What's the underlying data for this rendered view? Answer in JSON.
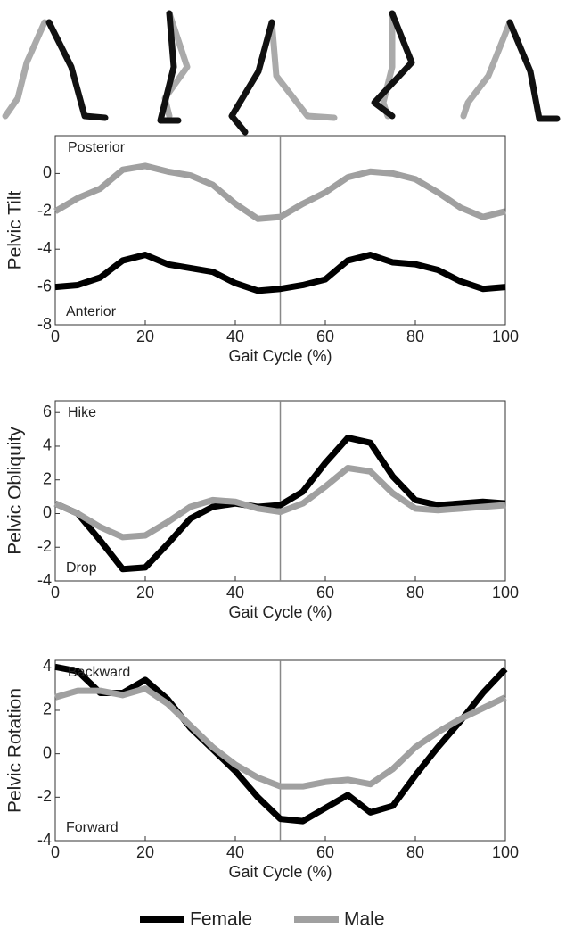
{
  "chart_data": [
    {
      "type": "line",
      "ylabel": "Pelvic Tilt",
      "xlabel": "Gait Cycle (%)",
      "annotations": [
        "Posterior",
        "Anterior"
      ],
      "x": [
        0,
        5,
        10,
        15,
        20,
        25,
        30,
        35,
        40,
        45,
        50,
        55,
        60,
        65,
        70,
        75,
        80,
        85,
        90,
        95,
        100
      ],
      "series": [
        {
          "name": "Female",
          "color": "#000000",
          "values": [
            -6,
            -5.9,
            -5.5,
            -4.6,
            -4.3,
            -4.8,
            -5,
            -5.2,
            -5.8,
            -6.2,
            -6.1,
            -5.9,
            -5.6,
            -4.6,
            -4.3,
            -4.7,
            -4.8,
            -5.1,
            -5.7,
            -6.1,
            -6
          ]
        },
        {
          "name": "Male",
          "color": "#a0a0a0",
          "values": [
            -2,
            -1.3,
            -0.8,
            0.2,
            0.4,
            0.1,
            -0.1,
            -0.6,
            -1.6,
            -2.4,
            -2.3,
            -1.6,
            -1,
            -0.2,
            0.1,
            0,
            -0.3,
            -1,
            -1.8,
            -2.3,
            -2
          ]
        }
      ],
      "xlim": [
        0,
        100
      ],
      "xticks": [
        0,
        20,
        40,
        60,
        80,
        100
      ],
      "ylim": [
        -8,
        2
      ],
      "yticks": [
        -8,
        -6,
        -4,
        -2,
        0
      ],
      "vline": 50
    },
    {
      "type": "line",
      "ylabel": "Pelvic Obliquity",
      "xlabel": "Gait Cycle (%)",
      "annotations": [
        "Hike",
        "Drop"
      ],
      "x": [
        0,
        5,
        10,
        15,
        20,
        25,
        30,
        35,
        40,
        45,
        50,
        55,
        60,
        65,
        70,
        75,
        80,
        85,
        90,
        95,
        100
      ],
      "series": [
        {
          "name": "Female",
          "color": "#000000",
          "values": [
            0.6,
            0,
            -1.6,
            -3.3,
            -3.2,
            -1.8,
            -0.3,
            0.4,
            0.6,
            0.4,
            0.5,
            1.3,
            3,
            4.5,
            4.2,
            2.2,
            0.8,
            0.5,
            0.6,
            0.7,
            0.6
          ]
        },
        {
          "name": "Male",
          "color": "#a0a0a0",
          "values": [
            0.6,
            0,
            -0.8,
            -1.4,
            -1.3,
            -0.5,
            0.4,
            0.8,
            0.7,
            0.3,
            0.1,
            0.6,
            1.6,
            2.7,
            2.5,
            1.2,
            0.3,
            0.2,
            0.3,
            0.4,
            0.5
          ]
        }
      ],
      "xlim": [
        0,
        100
      ],
      "xticks": [
        0,
        20,
        40,
        60,
        80,
        100
      ],
      "ylim": [
        -4,
        6.7
      ],
      "yticks": [
        -4,
        -2,
        0,
        2,
        4,
        6
      ],
      "vline": 50
    },
    {
      "type": "line",
      "ylabel": "Pelvic Rotation",
      "xlabel": "Gait Cycle (%)",
      "annotations": [
        "Backward",
        "Forward"
      ],
      "x": [
        0,
        5,
        10,
        15,
        20,
        25,
        30,
        35,
        40,
        45,
        50,
        55,
        60,
        65,
        70,
        75,
        80,
        85,
        90,
        95,
        100
      ],
      "series": [
        {
          "name": "Female",
          "color": "#000000",
          "values": [
            4,
            3.8,
            2.8,
            2.8,
            3.4,
            2.5,
            1.2,
            0.2,
            -0.8,
            -2,
            -3,
            -3.1,
            -2.5,
            -1.9,
            -2.7,
            -2.4,
            -1,
            0.3,
            1.5,
            2.8,
            3.9
          ]
        },
        {
          "name": "Male",
          "color": "#a0a0a0",
          "values": [
            2.6,
            2.9,
            2.9,
            2.7,
            3,
            2.3,
            1.3,
            0.3,
            -0.5,
            -1.1,
            -1.5,
            -1.5,
            -1.3,
            -1.2,
            -1.4,
            -0.7,
            0.3,
            1,
            1.6,
            2.1,
            2.6
          ]
        }
      ],
      "xlim": [
        0,
        100
      ],
      "xticks": [
        0,
        20,
        40,
        60,
        80,
        100
      ],
      "ylim": [
        -4,
        4.3
      ],
      "yticks": [
        -4,
        -2,
        0,
        2,
        4
      ],
      "vline": 50
    }
  ]
}
